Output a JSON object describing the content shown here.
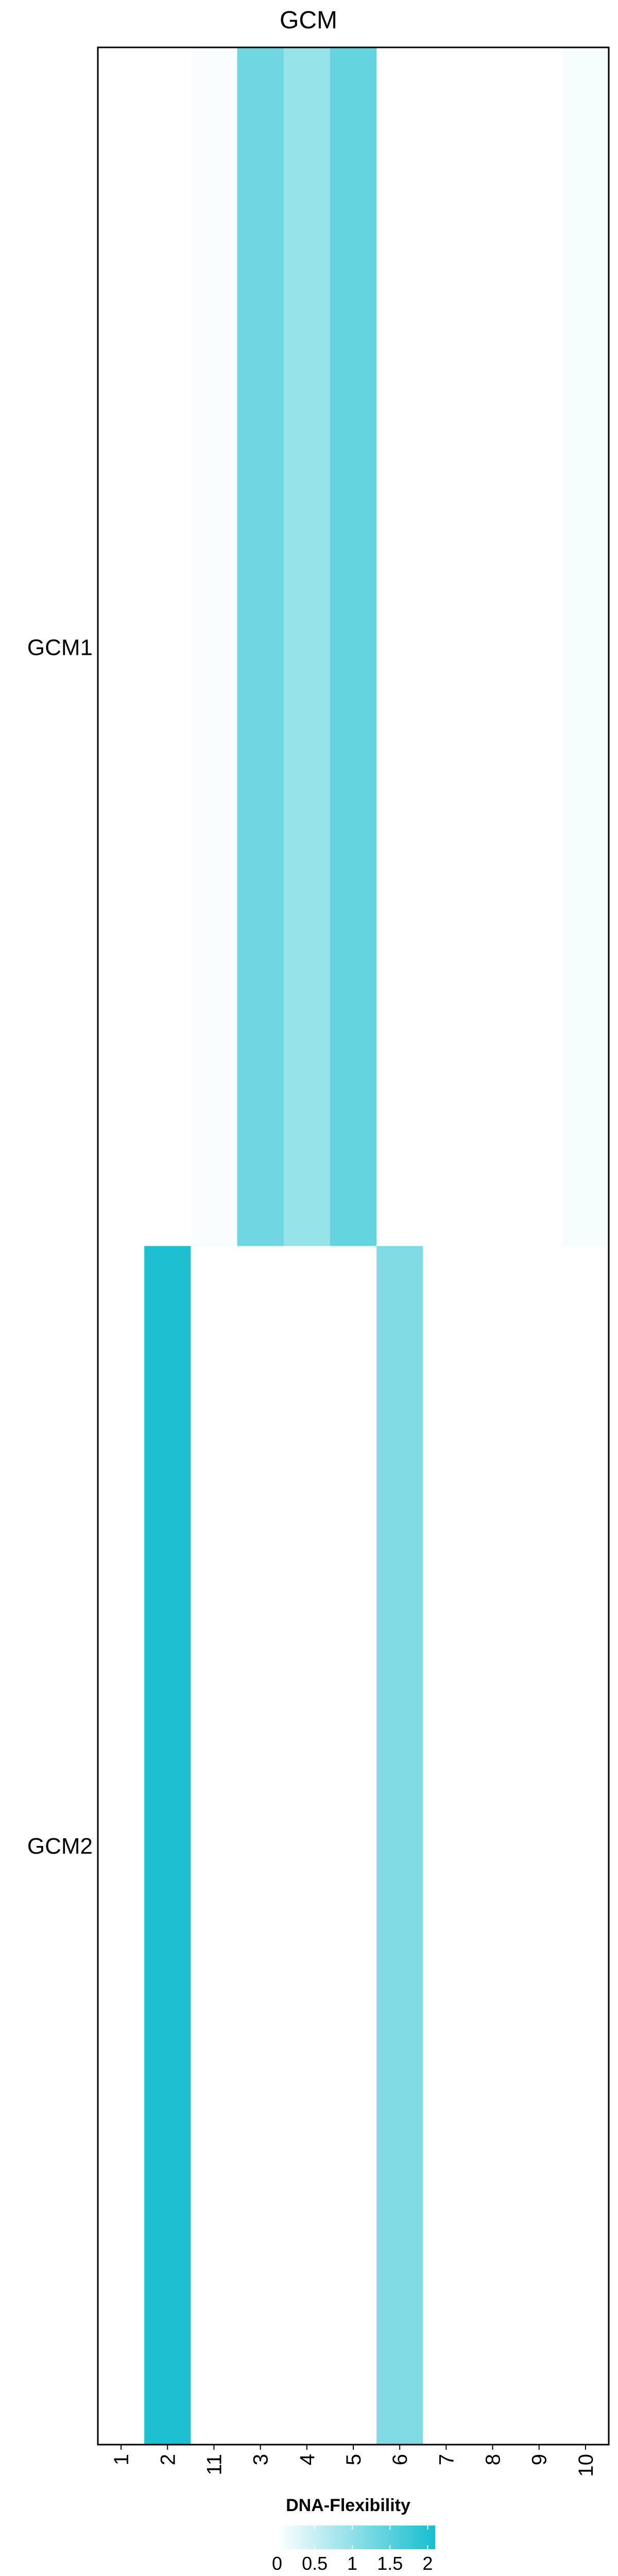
{
  "chart_data": {
    "type": "heatmap",
    "title": "GCM",
    "rows": [
      "GCM1",
      "GCM2"
    ],
    "columns": [
      "1",
      "2",
      "11",
      "3",
      "4",
      "5",
      "6",
      "7",
      "8",
      "9",
      "10"
    ],
    "values": [
      [
        0.0,
        0.0,
        0.05,
        1.3,
        0.95,
        1.4,
        0.0,
        0.0,
        0.0,
        0.0,
        0.08
      ],
      [
        0.0,
        2.05,
        0.0,
        0.0,
        0.0,
        0.0,
        1.15,
        0.0,
        0.0,
        0.0,
        0.0
      ]
    ],
    "legend": {
      "title": "DNA-Flexibility",
      "ticks": [
        "0",
        "0.5",
        "1",
        "1.5",
        "2"
      ],
      "range": [
        0,
        2.1
      ],
      "color_low": "#ffffff",
      "color_high": "#17becf"
    },
    "grid": false
  }
}
